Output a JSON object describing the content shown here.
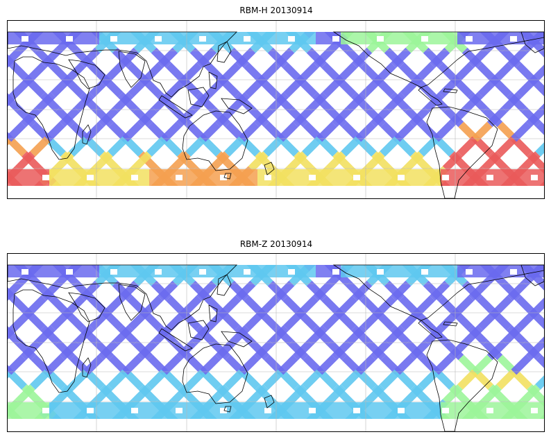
{
  "figure": {
    "panels": [
      {
        "title": "RBM-H 20130914",
        "projection": "equirectangular, centered near 160°E",
        "gridlines": true,
        "colormap": "jet (blue low → red high)",
        "hotspots": [
          {
            "region": "south-atlantic",
            "intensity": "high"
          },
          {
            "region": "southern-indian-ocean",
            "intensity": "high"
          },
          {
            "region": "south-pacific",
            "intensity": "medium"
          },
          {
            "region": "north-atlantic",
            "intensity": "medium"
          }
        ]
      },
      {
        "title": "RBM-Z 20130914",
        "projection": "equirectangular, centered near 160°E",
        "gridlines": true,
        "colormap": "jet (blue low → red high)",
        "hotspots": [
          {
            "region": "south-atlantic",
            "intensity": "medium"
          },
          {
            "region": "southern-indian-ocean",
            "intensity": "low"
          }
        ]
      }
    ],
    "colors": {
      "track_low": "#6a6aee",
      "track_mid": "#5fc8f0",
      "track_green": "#9cf59a",
      "track_yellow": "#f2e060",
      "track_orange": "#f4a050",
      "track_high": "#ea5a5a",
      "coastline": "#000000",
      "grid": "#b8b8b8"
    }
  }
}
